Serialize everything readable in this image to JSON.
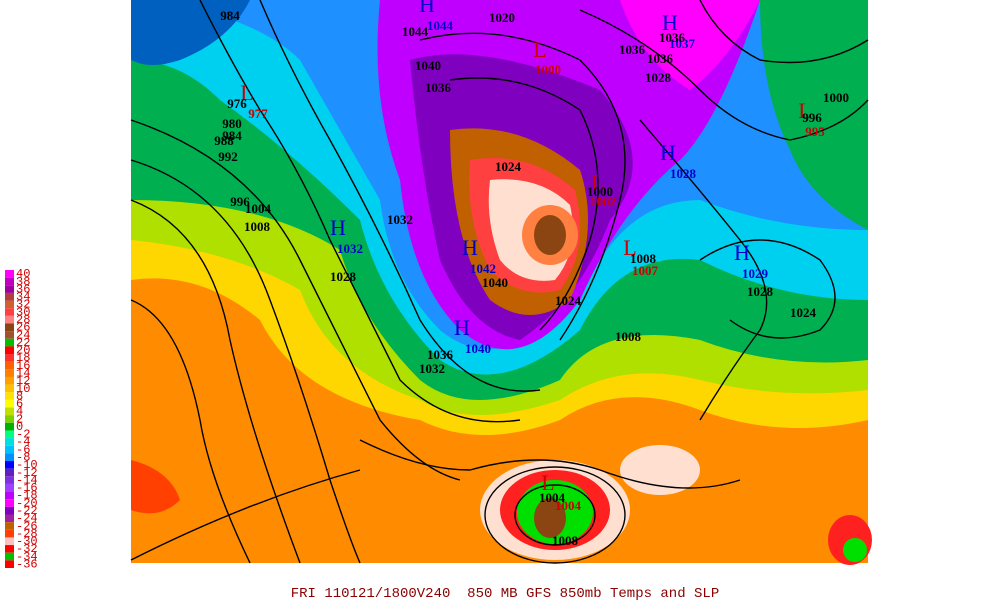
{
  "legend": {
    "items": [
      {
        "label": "40",
        "color": "#ff00ff"
      },
      {
        "label": "38",
        "color": "#c000c0"
      },
      {
        "label": "36",
        "color": "#a000a0"
      },
      {
        "label": "34",
        "color": "#b04040"
      },
      {
        "label": "32",
        "color": "#d06030"
      },
      {
        "label": "30",
        "color": "#ff4040"
      },
      {
        "label": "28",
        "color": "#ff8080"
      },
      {
        "label": "26",
        "color": "#8b4513"
      },
      {
        "label": "24",
        "color": "#a0522d"
      },
      {
        "label": "22",
        "color": "#00c000"
      },
      {
        "label": "20",
        "color": "#ff0000"
      },
      {
        "label": "18",
        "color": "#ff3030"
      },
      {
        "label": "16",
        "color": "#ff6000"
      },
      {
        "label": "14",
        "color": "#ff8000"
      },
      {
        "label": "12",
        "color": "#ffa000"
      },
      {
        "label": "10",
        "color": "#ffc000"
      },
      {
        "label": "8",
        "color": "#ffe000"
      },
      {
        "label": "6",
        "color": "#ffff00"
      },
      {
        "label": "4",
        "color": "#c0e000"
      },
      {
        "label": "2",
        "color": "#80d000"
      },
      {
        "label": "0",
        "color": "#00b000"
      },
      {
        "label": "-2",
        "color": "#00ff80"
      },
      {
        "label": "-4",
        "color": "#00e0e0"
      },
      {
        "label": "-6",
        "color": "#00c0ff"
      },
      {
        "label": "-8",
        "color": "#0090ff"
      },
      {
        "label": "-10",
        "color": "#0000ff"
      },
      {
        "label": "-12",
        "color": "#6020c0"
      },
      {
        "label": "-14",
        "color": "#8030e0"
      },
      {
        "label": "-16",
        "color": "#a040ff"
      },
      {
        "label": "-18",
        "color": "#c000ff"
      },
      {
        "label": "-20",
        "color": "#ff00ff"
      },
      {
        "label": "-22",
        "color": "#8000c0"
      },
      {
        "label": "-24",
        "color": "#a020a0"
      },
      {
        "label": "-26",
        "color": "#c06000"
      },
      {
        "label": "-28",
        "color": "#ff4000"
      },
      {
        "label": "-30",
        "color": "#ffc0c0"
      },
      {
        "label": "-32",
        "color": "#ff0000"
      },
      {
        "label": "-34",
        "color": "#00c000"
      },
      {
        "label": "-36",
        "color": "#ff0000"
      }
    ]
  },
  "centers": [
    {
      "symbol": "H",
      "value": "1044"
    },
    {
      "symbol": "L",
      "value": "977"
    },
    {
      "symbol": "L",
      "value": "1000"
    },
    {
      "symbol": "H",
      "value": "1037"
    },
    {
      "symbol": "L",
      "value": "995"
    },
    {
      "symbol": "H",
      "value": "1032"
    },
    {
      "symbol": "H",
      "value": "1042"
    },
    {
      "symbol": "H",
      "value": "1040"
    },
    {
      "symbol": "L",
      "value": "1002"
    },
    {
      "symbol": "L",
      "value": "1007"
    },
    {
      "symbol": "H",
      "value": "1028"
    },
    {
      "symbol": "H",
      "value": "1029"
    },
    {
      "symbol": "L",
      "value": "1004"
    }
  ],
  "contour_labels": [
    "984",
    "1020",
    "1044",
    "1040",
    "1036",
    "976",
    "980",
    "984",
    "988",
    "992",
    "996",
    "1004",
    "1008",
    "1028",
    "1032",
    "1024",
    "1000",
    "1040",
    "1024",
    "1008",
    "1008",
    "1036",
    "1032",
    "1028",
    "1024",
    "1000",
    "996",
    "1036",
    "1036",
    "1028",
    "1036",
    "1004",
    "1008"
  ],
  "footer": "FRI 110121/1800V240  850 MB GFS 850mb Temps and SLP"
}
